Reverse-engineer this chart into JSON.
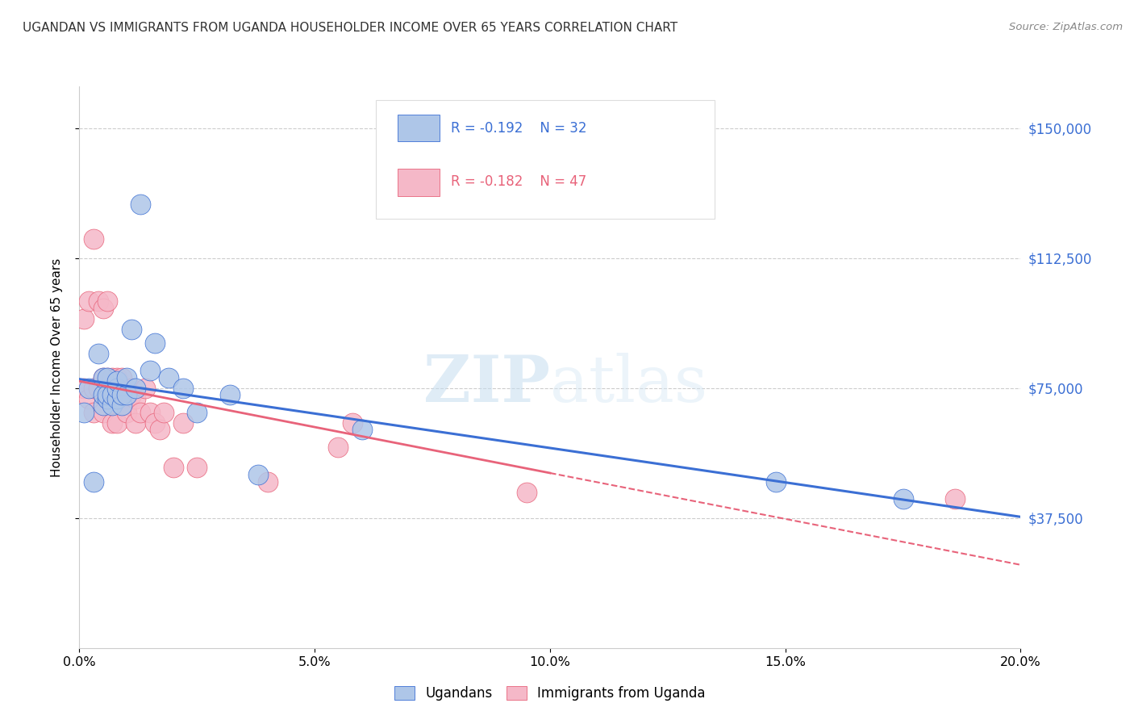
{
  "title": "UGANDAN VS IMMIGRANTS FROM UGANDA HOUSEHOLDER INCOME OVER 65 YEARS CORRELATION CHART",
  "source": "Source: ZipAtlas.com",
  "ylabel": "Householder Income Over 65 years",
  "legend_label1": "Ugandans",
  "legend_label2": "Immigrants from Uganda",
  "legend_r1": "R = -0.192",
  "legend_n1": "N = 32",
  "legend_r2": "R = -0.182",
  "legend_n2": "N = 47",
  "xlim": [
    0.0,
    0.2
  ],
  "ylim": [
    0,
    162000
  ],
  "yticks": [
    37500,
    75000,
    112500,
    150000
  ],
  "ytick_labels": [
    "$37,500",
    "$75,000",
    "$112,500",
    "$150,000"
  ],
  "xticks": [
    0.0,
    0.05,
    0.1,
    0.15,
    0.2
  ],
  "xtick_labels": [
    "0.0%",
    "5.0%",
    "10.0%",
    "15.0%",
    "20.0%"
  ],
  "blue_color": "#aec6e8",
  "pink_color": "#f5b8c8",
  "blue_line_color": "#3b6fd4",
  "pink_line_color": "#e8637a",
  "watermark_zip": "ZIP",
  "watermark_atlas": "atlas",
  "background_color": "#ffffff",
  "ugandans_x": [
    0.001,
    0.002,
    0.003,
    0.004,
    0.005,
    0.005,
    0.005,
    0.006,
    0.006,
    0.006,
    0.007,
    0.007,
    0.008,
    0.008,
    0.008,
    0.009,
    0.009,
    0.01,
    0.01,
    0.011,
    0.012,
    0.013,
    0.015,
    0.016,
    0.019,
    0.022,
    0.025,
    0.032,
    0.038,
    0.06,
    0.148,
    0.175
  ],
  "ugandans_y": [
    68000,
    75000,
    48000,
    85000,
    70000,
    73000,
    78000,
    72000,
    73000,
    78000,
    70000,
    73000,
    72000,
    75000,
    77000,
    70000,
    73000,
    73000,
    78000,
    92000,
    75000,
    128000,
    80000,
    88000,
    78000,
    75000,
    68000,
    73000,
    50000,
    63000,
    48000,
    43000
  ],
  "immigrants_x": [
    0.001,
    0.001,
    0.002,
    0.002,
    0.003,
    0.003,
    0.003,
    0.004,
    0.004,
    0.005,
    0.005,
    0.005,
    0.005,
    0.006,
    0.006,
    0.006,
    0.006,
    0.007,
    0.007,
    0.007,
    0.008,
    0.008,
    0.008,
    0.008,
    0.009,
    0.009,
    0.009,
    0.01,
    0.01,
    0.011,
    0.011,
    0.012,
    0.012,
    0.013,
    0.014,
    0.015,
    0.016,
    0.017,
    0.018,
    0.02,
    0.022,
    0.025,
    0.04,
    0.055,
    0.058,
    0.095,
    0.186
  ],
  "immigrants_y": [
    75000,
    95000,
    72000,
    100000,
    68000,
    75000,
    118000,
    75000,
    100000,
    73000,
    78000,
    98000,
    68000,
    78000,
    72000,
    100000,
    75000,
    72000,
    78000,
    65000,
    72000,
    73000,
    78000,
    65000,
    72000,
    73000,
    78000,
    70000,
    68000,
    73000,
    75000,
    72000,
    65000,
    68000,
    75000,
    68000,
    65000,
    63000,
    68000,
    52000,
    65000,
    52000,
    48000,
    58000,
    65000,
    45000,
    43000
  ]
}
